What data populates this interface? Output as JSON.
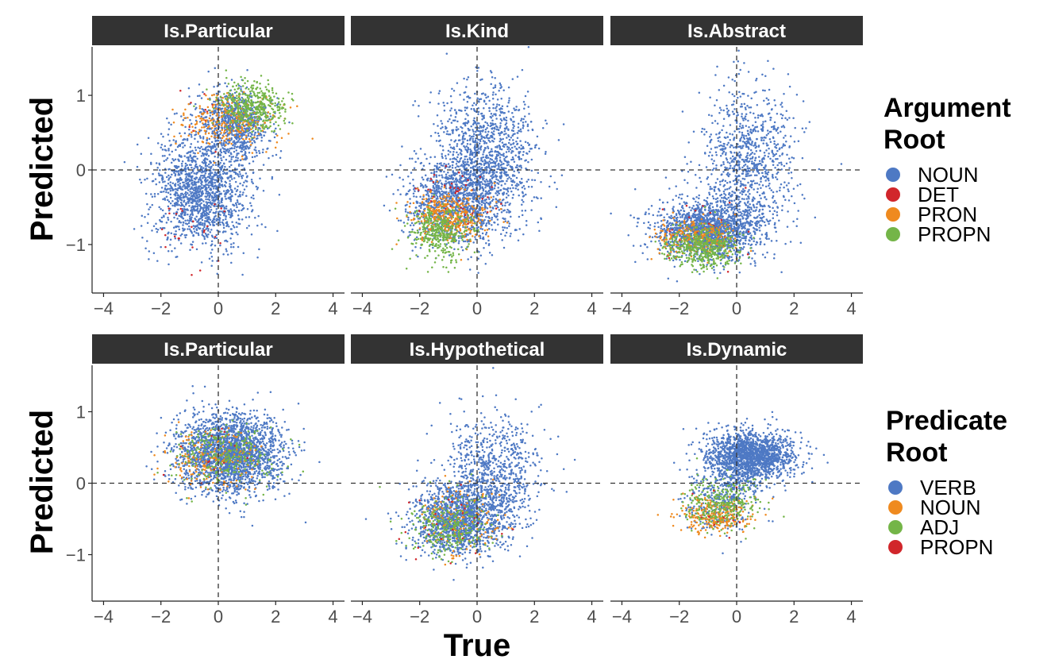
{
  "figure": {
    "ylabel": "Predicted",
    "xlabel": "True",
    "xticks": [
      "−4",
      "−2",
      "0",
      "2",
      "4"
    ],
    "yticks": [
      "1",
      "0",
      "−1"
    ]
  },
  "colors": {
    "blue": "#4e79c4",
    "red": "#d1262b",
    "orange": "#ef8a1f",
    "green": "#74b548",
    "strip": "#333333",
    "axis": "#222222",
    "tick_label": "#4d4d4d"
  },
  "legends": [
    {
      "title_lines": [
        "Argument",
        "Root"
      ],
      "items": [
        {
          "label": "NOUN",
          "color": "#4e79c4"
        },
        {
          "label": "DET",
          "color": "#d1262b"
        },
        {
          "label": "PRON",
          "color": "#ef8a1f"
        },
        {
          "label": "PROPN",
          "color": "#74b548"
        }
      ]
    },
    {
      "title_lines": [
        "Predicate",
        "Root"
      ],
      "items": [
        {
          "label": "VERB",
          "color": "#4e79c4"
        },
        {
          "label": "NOUN",
          "color": "#ef8a1f"
        },
        {
          "label": "ADJ",
          "color": "#74b548"
        },
        {
          "label": "PROPN",
          "color": "#d1262b"
        }
      ]
    }
  ],
  "chart_data": [
    {
      "type": "scatter",
      "title": "Is.Particular",
      "row": 0,
      "col": 0,
      "xlim": [
        -4.4,
        4.4
      ],
      "ylim": [
        -1.65,
        1.65
      ],
      "xticks": [
        -4,
        -2,
        0,
        2,
        4
      ],
      "yticks": [
        -1,
        0,
        1
      ],
      "reference_lines": {
        "x": 0,
        "y": 0
      },
      "series": [
        {
          "name": "NOUN",
          "color": "#4e79c4",
          "clusters": [
            {
              "n": 1500,
              "cx": -0.6,
              "cy": -0.3,
              "sx": 0.85,
              "sy": 0.38
            },
            {
              "n": 800,
              "cx": 0.6,
              "cy": 0.6,
              "sx": 0.6,
              "sy": 0.22
            }
          ]
        },
        {
          "name": "DET",
          "color": "#d1262b",
          "clusters": [
            {
              "n": 25,
              "cx": -1.0,
              "cy": -0.8,
              "sx": 0.6,
              "sy": 0.2
            },
            {
              "n": 10,
              "cx": -0.5,
              "cy": 0.7,
              "sx": 0.5,
              "sy": 0.2
            }
          ]
        },
        {
          "name": "PRON",
          "color": "#ef8a1f",
          "clusters": [
            {
              "n": 260,
              "cx": 0.4,
              "cy": 0.65,
              "sx": 0.85,
              "sy": 0.18
            }
          ]
        },
        {
          "name": "PROPN",
          "color": "#74b548",
          "clusters": [
            {
              "n": 420,
              "cx": 1.2,
              "cy": 0.85,
              "sx": 0.6,
              "sy": 0.15
            }
          ]
        }
      ]
    },
    {
      "type": "scatter",
      "title": "Is.Kind",
      "row": 0,
      "col": 1,
      "xlim": [
        -4.4,
        4.4
      ],
      "ylim": [
        -1.65,
        1.65
      ],
      "xticks": [
        -4,
        -2,
        0,
        2,
        4
      ],
      "yticks": [
        -1,
        0,
        1
      ],
      "reference_lines": {
        "x": 0,
        "y": 0
      },
      "series": [
        {
          "name": "NOUN",
          "color": "#4e79c4",
          "clusters": [
            {
              "n": 1300,
              "cx": 0.3,
              "cy": 0.15,
              "sx": 0.9,
              "sy": 0.48
            },
            {
              "n": 1000,
              "cx": -0.8,
              "cy": -0.45,
              "sx": 0.8,
              "sy": 0.28
            }
          ]
        },
        {
          "name": "DET",
          "color": "#d1262b",
          "clusters": [
            {
              "n": 45,
              "cx": -0.8,
              "cy": -0.35,
              "sx": 0.8,
              "sy": 0.18
            }
          ]
        },
        {
          "name": "PRON",
          "color": "#ef8a1f",
          "clusters": [
            {
              "n": 360,
              "cx": -0.9,
              "cy": -0.62,
              "sx": 0.65,
              "sy": 0.16
            }
          ]
        },
        {
          "name": "PROPN",
          "color": "#74b548",
          "clusters": [
            {
              "n": 360,
              "cx": -1.3,
              "cy": -0.85,
              "sx": 0.5,
              "sy": 0.18
            }
          ]
        }
      ]
    },
    {
      "type": "scatter",
      "title": "Is.Abstract",
      "row": 0,
      "col": 2,
      "xlim": [
        -4.4,
        4.4
      ],
      "ylim": [
        -1.65,
        1.65
      ],
      "xticks": [
        -4,
        -2,
        0,
        2,
        4
      ],
      "yticks": [
        -1,
        0,
        1
      ],
      "reference_lines": {
        "x": 0,
        "y": 0
      },
      "series": [
        {
          "name": "NOUN",
          "color": "#4e79c4",
          "clusters": [
            {
              "n": 1600,
              "cx": -1.0,
              "cy": -0.8,
              "sx": 0.9,
              "sy": 0.2
            },
            {
              "n": 950,
              "cx": 0.4,
              "cy": 0.1,
              "sx": 0.8,
              "sy": 0.5
            }
          ]
        },
        {
          "name": "DET",
          "color": "#d1262b",
          "clusters": [
            {
              "n": 30,
              "cx": -1.2,
              "cy": -0.8,
              "sx": 0.8,
              "sy": 0.3
            }
          ]
        },
        {
          "name": "PRON",
          "color": "#ef8a1f",
          "clusters": [
            {
              "n": 240,
              "cx": -1.3,
              "cy": -0.9,
              "sx": 0.75,
              "sy": 0.12
            }
          ]
        },
        {
          "name": "PROPN",
          "color": "#74b548",
          "clusters": [
            {
              "n": 440,
              "cx": -1.2,
              "cy": -1.05,
              "sx": 0.65,
              "sy": 0.14
            }
          ]
        }
      ]
    },
    {
      "type": "scatter",
      "title": "Is.Particular",
      "row": 1,
      "col": 0,
      "xlim": [
        -4.4,
        4.4
      ],
      "ylim": [
        -1.65,
        1.65
      ],
      "xticks": [
        -4,
        -2,
        0,
        2,
        4
      ],
      "yticks": [
        -1,
        0,
        1
      ],
      "reference_lines": {
        "x": 0,
        "y": 0
      },
      "series": [
        {
          "name": "VERB",
          "color": "#4e79c4",
          "clusters": [
            {
              "n": 2300,
              "cx": 0.4,
              "cy": 0.42,
              "sx": 0.9,
              "sy": 0.27
            }
          ]
        },
        {
          "name": "NOUN",
          "color": "#ef8a1f",
          "clusters": [
            {
              "n": 180,
              "cx": -0.3,
              "cy": 0.35,
              "sx": 0.8,
              "sy": 0.2
            }
          ]
        },
        {
          "name": "ADJ",
          "color": "#74b548",
          "clusters": [
            {
              "n": 260,
              "cx": 0.2,
              "cy": 0.38,
              "sx": 0.9,
              "sy": 0.22
            }
          ]
        },
        {
          "name": "PROPN",
          "color": "#d1262b",
          "clusters": [
            {
              "n": 12,
              "cx": 0.0,
              "cy": 0.4,
              "sx": 0.8,
              "sy": 0.2
            }
          ]
        }
      ]
    },
    {
      "type": "scatter",
      "title": "Is.Hypothetical",
      "row": 1,
      "col": 1,
      "xlim": [
        -4.4,
        4.4
      ],
      "ylim": [
        -1.65,
        1.65
      ],
      "xticks": [
        -4,
        -2,
        0,
        2,
        4
      ],
      "yticks": [
        -1,
        0,
        1
      ],
      "reference_lines": {
        "x": 0,
        "y": 0
      },
      "series": [
        {
          "name": "VERB",
          "color": "#4e79c4",
          "clusters": [
            {
              "n": 1500,
              "cx": -0.6,
              "cy": -0.5,
              "sx": 0.8,
              "sy": 0.25
            },
            {
              "n": 800,
              "cx": 0.6,
              "cy": 0.15,
              "sx": 0.85,
              "sy": 0.38
            }
          ]
        },
        {
          "name": "NOUN",
          "color": "#ef8a1f",
          "clusters": [
            {
              "n": 130,
              "cx": -0.6,
              "cy": -0.5,
              "sx": 0.8,
              "sy": 0.25
            }
          ]
        },
        {
          "name": "ADJ",
          "color": "#74b548",
          "clusters": [
            {
              "n": 260,
              "cx": -1.0,
              "cy": -0.6,
              "sx": 0.7,
              "sy": 0.22
            }
          ]
        },
        {
          "name": "PROPN",
          "color": "#d1262b",
          "clusters": [
            {
              "n": 25,
              "cx": -1.0,
              "cy": -0.5,
              "sx": 0.8,
              "sy": 0.3
            }
          ]
        }
      ]
    },
    {
      "type": "scatter",
      "title": "Is.Dynamic",
      "row": 1,
      "col": 2,
      "xlim": [
        -4.4,
        4.4
      ],
      "ylim": [
        -1.65,
        1.65
      ],
      "xticks": [
        -4,
        -2,
        0,
        2,
        4
      ],
      "yticks": [
        -1,
        0,
        1
      ],
      "reference_lines": {
        "x": 0,
        "y": 0
      },
      "series": [
        {
          "name": "VERB",
          "color": "#4e79c4",
          "clusters": [
            {
              "n": 1700,
              "cx": 0.5,
              "cy": 0.38,
              "sx": 0.75,
              "sy": 0.18
            },
            {
              "n": 350,
              "cx": -0.5,
              "cy": -0.2,
              "sx": 0.7,
              "sy": 0.22
            }
          ]
        },
        {
          "name": "NOUN",
          "color": "#ef8a1f",
          "clusters": [
            {
              "n": 260,
              "cx": -0.7,
              "cy": -0.45,
              "sx": 0.6,
              "sy": 0.13
            }
          ]
        },
        {
          "name": "ADJ",
          "color": "#74b548",
          "clusters": [
            {
              "n": 300,
              "cx": -0.5,
              "cy": -0.28,
              "sx": 0.7,
              "sy": 0.16
            }
          ]
        },
        {
          "name": "PROPN",
          "color": "#d1262b",
          "clusters": [
            {
              "n": 12,
              "cx": -0.5,
              "cy": -0.4,
              "sx": 0.6,
              "sy": 0.2
            }
          ]
        }
      ]
    }
  ]
}
